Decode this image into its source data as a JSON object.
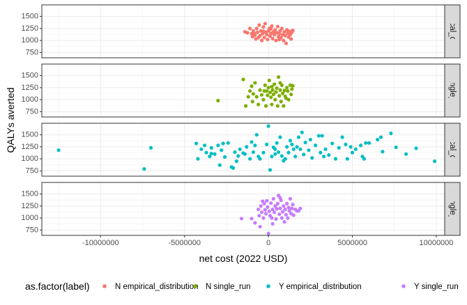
{
  "chart_data": {
    "type": "scatter",
    "facet": "rows",
    "xlabel": "net cost (2022 USD)",
    "ylabel": "QALYs averted",
    "x_ticks": [
      -10000000,
      -5000000,
      0,
      5000000,
      10000000
    ],
    "x_tick_labels": [
      "-10000000",
      "-5000000",
      "0",
      "5000000",
      "10000000"
    ],
    "xlim": [
      -13500000,
      10500000
    ],
    "y_ticks": [
      750,
      1000,
      1250,
      1500
    ],
    "y_tick_labels": [
      "750",
      "1000",
      "1250",
      "1500"
    ],
    "ylim": [
      640,
      1740
    ],
    "grid": true,
    "legend": {
      "title": "as.factor(label)",
      "position": "bottom",
      "entries": [
        "N empirical_distribution",
        "N single_run",
        "Y empirical_distribution",
        "Y single_run"
      ]
    },
    "panels": [
      {
        "strip": "N empirical_distribution",
        "strip_visible": "mpirical_distrib",
        "color": "#F8766D",
        "points": [
          [
            -1400000,
            1180
          ],
          [
            -1250000,
            1160
          ],
          [
            -1100000,
            1250
          ],
          [
            -1000000,
            1140
          ],
          [
            -950000,
            1080
          ],
          [
            -900000,
            1200
          ],
          [
            -800000,
            1110
          ],
          [
            -750000,
            1030
          ],
          [
            -700000,
            1250
          ],
          [
            -650000,
            1170
          ],
          [
            -600000,
            1060
          ],
          [
            -550000,
            1320
          ],
          [
            -500000,
            1100
          ],
          [
            -450000,
            1200
          ],
          [
            -400000,
            1000
          ],
          [
            -350000,
            1140
          ],
          [
            -300000,
            1280
          ],
          [
            -250000,
            1060
          ],
          [
            -200000,
            1350
          ],
          [
            -150000,
            1170
          ],
          [
            -100000,
            1120
          ],
          [
            -50000,
            1020
          ],
          [
            0,
            1200
          ],
          [
            50000,
            1250
          ],
          [
            100000,
            1090
          ],
          [
            150000,
            1150
          ],
          [
            200000,
            1300
          ],
          [
            250000,
            1040
          ],
          [
            300000,
            1180
          ],
          [
            350000,
            1120
          ],
          [
            400000,
            1220
          ],
          [
            450000,
            1000
          ],
          [
            500000,
            1160
          ],
          [
            550000,
            1290
          ],
          [
            600000,
            1080
          ],
          [
            650000,
            1140
          ],
          [
            700000,
            1200
          ],
          [
            750000,
            1060
          ],
          [
            800000,
            1250
          ],
          [
            850000,
            1120
          ],
          [
            900000,
            1000
          ],
          [
            950000,
            1180
          ],
          [
            1000000,
            1100
          ],
          [
            1050000,
            940
          ],
          [
            1100000,
            1220
          ],
          [
            1150000,
            1150
          ],
          [
            1200000,
            1070
          ],
          [
            1250000,
            1190
          ],
          [
            1300000,
            1120
          ],
          [
            1350000,
            1030
          ],
          [
            1400000,
            1170
          ],
          [
            1450000,
            1210
          ],
          [
            -850000,
            1150
          ],
          [
            -300000,
            1190
          ],
          [
            150000,
            1240
          ],
          [
            650000,
            1020
          ]
        ]
      },
      {
        "strip": "N single_run",
        "strip_visible": "N single_run",
        "color": "#7CAE00",
        "points": [
          [
            -3000000,
            980
          ],
          [
            -1500000,
            1420
          ],
          [
            -1350000,
            870
          ],
          [
            -1200000,
            1060
          ],
          [
            -1100000,
            1180
          ],
          [
            -1000000,
            1280
          ],
          [
            -950000,
            960
          ],
          [
            -900000,
            1120
          ],
          [
            -800000,
            1350
          ],
          [
            -700000,
            1060
          ],
          [
            -600000,
            900
          ],
          [
            -500000,
            1200
          ],
          [
            -400000,
            1100
          ],
          [
            -300000,
            1000
          ],
          [
            -200000,
            1300
          ],
          [
            -150000,
            870
          ],
          [
            -100000,
            1180
          ],
          [
            -50000,
            1090
          ],
          [
            0,
            1250
          ],
          [
            50000,
            1400
          ],
          [
            100000,
            1150
          ],
          [
            150000,
            1050
          ],
          [
            200000,
            900
          ],
          [
            250000,
            1200
          ],
          [
            300000,
            1110
          ],
          [
            350000,
            1320
          ],
          [
            400000,
            1000
          ],
          [
            450000,
            1160
          ],
          [
            500000,
            1240
          ],
          [
            550000,
            870
          ],
          [
            600000,
            1470
          ],
          [
            650000,
            1080
          ],
          [
            700000,
            1200
          ],
          [
            750000,
            960
          ],
          [
            800000,
            1300
          ],
          [
            850000,
            1130
          ],
          [
            900000,
            870
          ],
          [
            950000,
            1190
          ],
          [
            1000000,
            1070
          ],
          [
            1100000,
            1250
          ],
          [
            1150000,
            1180
          ],
          [
            1200000,
            1000
          ],
          [
            1300000,
            1300
          ],
          [
            1350000,
            1110
          ],
          [
            1400000,
            1220
          ],
          [
            1450000,
            1290
          ],
          [
            -250000,
            1180
          ],
          [
            200000,
            1270
          ],
          [
            700000,
            1350
          ],
          [
            1050000,
            1030
          ]
        ]
      },
      {
        "strip": "Y empirical_distribution",
        "strip_visible": "mpirical_distrib",
        "color": "#00BFC4",
        "points": [
          [
            -12500000,
            1180
          ],
          [
            -7400000,
            790
          ],
          [
            -7000000,
            1230
          ],
          [
            -4300000,
            1320
          ],
          [
            -4200000,
            1000
          ],
          [
            -4000000,
            1200
          ],
          [
            -3800000,
            1280
          ],
          [
            -3700000,
            1130
          ],
          [
            -3500000,
            1050
          ],
          [
            -3400000,
            1230
          ],
          [
            -3200000,
            1100
          ],
          [
            -3000000,
            1280
          ],
          [
            -2900000,
            870
          ],
          [
            -2800000,
            1180
          ],
          [
            -2600000,
            1040
          ],
          [
            -2400000,
            1330
          ],
          [
            -2200000,
            830
          ],
          [
            -2100000,
            810
          ],
          [
            -2000000,
            1140
          ],
          [
            -1800000,
            1060
          ],
          [
            -1700000,
            1200
          ],
          [
            -1500000,
            1120
          ],
          [
            -1400000,
            1100
          ],
          [
            -1300000,
            1250
          ],
          [
            -1100000,
            1000
          ],
          [
            -1000000,
            1350
          ],
          [
            -900000,
            1140
          ],
          [
            -700000,
            1500
          ],
          [
            -600000,
            1050
          ],
          [
            -500000,
            1000
          ],
          [
            -300000,
            1130
          ],
          [
            -100000,
            1300
          ],
          [
            0,
            1680
          ],
          [
            100000,
            770
          ],
          [
            200000,
            1050
          ],
          [
            300000,
            1240
          ],
          [
            400000,
            1200
          ],
          [
            500000,
            1330
          ],
          [
            600000,
            1140
          ],
          [
            700000,
            1450
          ],
          [
            800000,
            1060
          ],
          [
            900000,
            960
          ],
          [
            1000000,
            1000
          ],
          [
            1100000,
            1250
          ],
          [
            1200000,
            1130
          ],
          [
            1300000,
            1380
          ],
          [
            1500000,
            1200
          ],
          [
            1600000,
            1050
          ],
          [
            1700000,
            1250
          ],
          [
            1800000,
            1450
          ],
          [
            1900000,
            1200
          ],
          [
            2000000,
            1550
          ],
          [
            2100000,
            1090
          ],
          [
            2200000,
            1340
          ],
          [
            2400000,
            1180
          ],
          [
            2600000,
            1020
          ],
          [
            2800000,
            1280
          ],
          [
            3000000,
            1480
          ],
          [
            3100000,
            1130
          ],
          [
            3200000,
            1480
          ],
          [
            3400000,
            1200
          ],
          [
            3600000,
            1080
          ],
          [
            3800000,
            1320
          ],
          [
            4000000,
            1000
          ],
          [
            4200000,
            1230
          ],
          [
            4400000,
            1450
          ],
          [
            4600000,
            1300
          ],
          [
            4700000,
            1000
          ],
          [
            5000000,
            1130
          ],
          [
            5200000,
            1200
          ],
          [
            5500000,
            1280
          ],
          [
            5600000,
            1050
          ],
          [
            5700000,
            1000
          ],
          [
            5800000,
            1330
          ],
          [
            6000000,
            1330
          ],
          [
            6700000,
            1450
          ],
          [
            6800000,
            1150
          ],
          [
            7300000,
            1530
          ],
          [
            7600000,
            1240
          ],
          [
            8200000,
            1100
          ],
          [
            8800000,
            1220
          ],
          [
            9900000,
            950
          ],
          [
            -3400000,
            1110
          ],
          [
            -2700000,
            1320
          ],
          [
            -1900000,
            950
          ],
          [
            -800000,
            1280
          ],
          [
            400000,
            1100
          ],
          [
            1400000,
            1300
          ],
          [
            2500000,
            1400
          ],
          [
            3300000,
            1050
          ],
          [
            4900000,
            1250
          ],
          [
            6500000,
            1400
          ]
        ]
      },
      {
        "strip": "Y single_run",
        "strip_visible": "Y single_run",
        "color": "#C77CFF",
        "points": [
          [
            -1600000,
            990
          ],
          [
            -1000000,
            990
          ],
          [
            -800000,
            900
          ],
          [
            -600000,
            1180
          ],
          [
            -550000,
            1050
          ],
          [
            -500000,
            820
          ],
          [
            -450000,
            1250
          ],
          [
            -400000,
            1120
          ],
          [
            -300000,
            1000
          ],
          [
            -250000,
            1300
          ],
          [
            -200000,
            1170
          ],
          [
            -150000,
            1090
          ],
          [
            -100000,
            1360
          ],
          [
            -50000,
            1230
          ],
          [
            0,
            680
          ],
          [
            50000,
            1140
          ],
          [
            100000,
            1050
          ],
          [
            150000,
            1310
          ],
          [
            200000,
            1000
          ],
          [
            250000,
            1180
          ],
          [
            300000,
            1400
          ],
          [
            350000,
            1120
          ],
          [
            400000,
            1250
          ],
          [
            450000,
            980
          ],
          [
            500000,
            1190
          ],
          [
            550000,
            1300
          ],
          [
            600000,
            1470
          ],
          [
            650000,
            1080
          ],
          [
            700000,
            1200
          ],
          [
            750000,
            1370
          ],
          [
            800000,
            1000
          ],
          [
            850000,
            1130
          ],
          [
            900000,
            1250
          ],
          [
            950000,
            920
          ],
          [
            1000000,
            1180
          ],
          [
            1050000,
            1070
          ],
          [
            1100000,
            1300
          ],
          [
            1150000,
            1000
          ],
          [
            1200000,
            1220
          ],
          [
            1250000,
            1150
          ],
          [
            1300000,
            1400
          ],
          [
            1350000,
            1090
          ],
          [
            1400000,
            1200
          ],
          [
            1450000,
            1280
          ],
          [
            1500000,
            1060
          ],
          [
            1600000,
            1180
          ],
          [
            1700000,
            1150
          ],
          [
            1800000,
            1150
          ],
          [
            1900000,
            1200
          ],
          [
            250000,
            880
          ],
          [
            700000,
            1420
          ],
          [
            -350000,
            1350
          ]
        ]
      }
    ]
  }
}
